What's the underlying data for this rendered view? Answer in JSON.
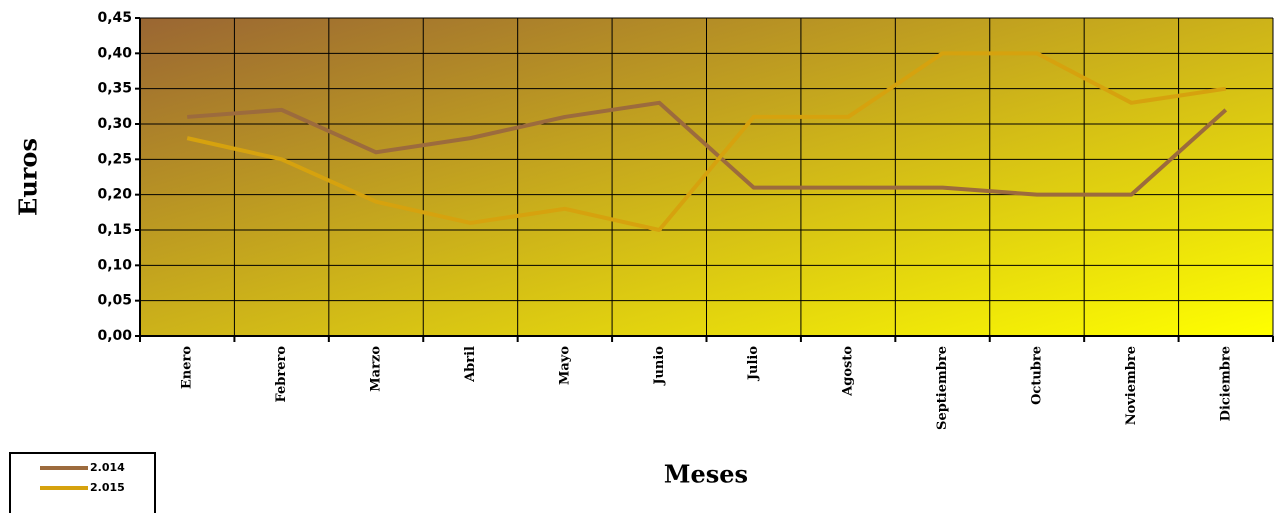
{
  "chart_data": {
    "type": "line",
    "x_label": "Meses",
    "y_label": "Euros",
    "categories": [
      "Enero",
      "Febrero",
      "Marzo",
      "Abril",
      "Mayo",
      "Junio",
      "Julio",
      "Agosto",
      "Septiembre",
      "Octubre",
      "Noviembre",
      "Diciembre"
    ],
    "series": [
      {
        "name": "2.014",
        "color": "#9c6b3d",
        "values": [
          0.31,
          0.32,
          0.26,
          0.28,
          0.31,
          0.33,
          0.21,
          0.21,
          0.21,
          0.2,
          0.2,
          0.32
        ]
      },
      {
        "name": "2.015",
        "color": "#d6a20e",
        "values": [
          0.28,
          0.25,
          0.19,
          0.16,
          0.18,
          0.15,
          0.31,
          0.31,
          0.4,
          0.4,
          0.33,
          0.35
        ]
      }
    ],
    "ylim": [
      0,
      0.45
    ],
    "yticks": [
      {
        "value": 0,
        "label": "0,00"
      },
      {
        "value": 0.05,
        "label": "0,05"
      },
      {
        "value": 0.1,
        "label": "0,10"
      },
      {
        "value": 0.15,
        "label": "0,15"
      },
      {
        "value": 0.2,
        "label": "0,20"
      },
      {
        "value": 0.25,
        "label": "0,25"
      },
      {
        "value": 0.3,
        "label": "0,30"
      },
      {
        "value": 0.35,
        "label": "0,35"
      },
      {
        "value": 0.4,
        "label": "0,40"
      },
      {
        "value": 0.45,
        "label": "0,45"
      }
    ],
    "grid": true,
    "legend": "bottom-left"
  }
}
